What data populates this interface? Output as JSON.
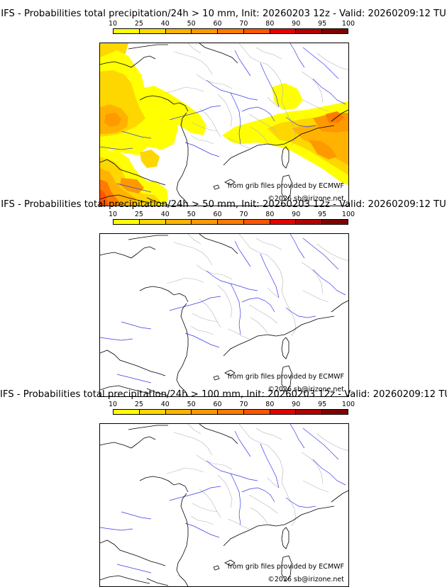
{
  "colorbar": {
    "ticks": [
      "10",
      "25",
      "40",
      "50",
      "60",
      "70",
      "80",
      "90",
      "95",
      "100"
    ],
    "colors": [
      "#ffff00",
      "#ffd700",
      "#ffb300",
      "#ff9900",
      "#ff7a00",
      "#ff5500",
      "#e60000",
      "#b30000",
      "#800000"
    ]
  },
  "map_text": {
    "source": "from grib files provided by ECMWF",
    "copyright": "©2026 sb@irizone.net"
  },
  "panels": [
    {
      "title": "IFS - Probabilities total precipitation/24h > 10 mm, Init: 20260203 12z - Valid: 20260209:12 TU",
      "threshold_mm": 10,
      "has_precip": true
    },
    {
      "title": "IFS - Probabilities total precipitation/24h > 50 mm, Init: 20260203 12z - Valid: 20260209:12 TU",
      "threshold_mm": 50,
      "has_precip": false
    },
    {
      "title": "IFS - Probabilities total precipitation/24h > 100 mm, Init: 20260203 12z - Valid: 20260209:12 TU",
      "threshold_mm": 100,
      "has_precip": false
    }
  ]
}
